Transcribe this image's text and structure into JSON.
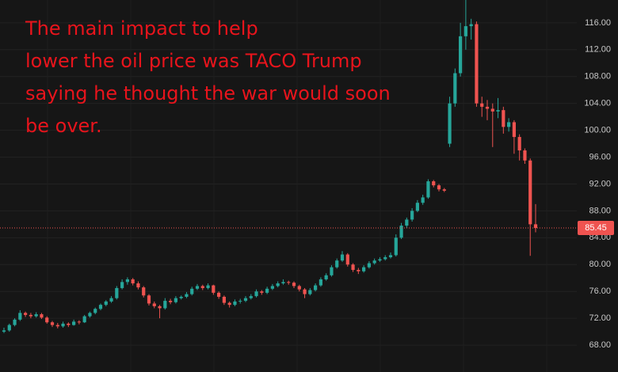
{
  "chart_data": {
    "type": "candlestick",
    "annotation_lines": [
      "The main impact to help",
      "lower the oil price was TACO Trump",
      "saying he thought the war would soon",
      "be over."
    ],
    "up_color": "#26a69a",
    "down_color": "#ef5350",
    "ylim": [
      64,
      119.4
    ],
    "yticks": [
      {
        "value": 68,
        "label": "68.00"
      },
      {
        "value": 72,
        "label": "72.00"
      },
      {
        "value": 76,
        "label": "76.00"
      },
      {
        "value": 80,
        "label": "80.00"
      },
      {
        "value": 84,
        "label": "84.00"
      },
      {
        "value": 88,
        "label": "88.00"
      },
      {
        "value": 92,
        "label": "92.00"
      },
      {
        "value": 96,
        "label": "96.00"
      },
      {
        "value": 100,
        "label": "100.00"
      },
      {
        "value": 104,
        "label": "104.00"
      },
      {
        "value": 108,
        "label": "108.00"
      },
      {
        "value": 112,
        "label": "112.00"
      },
      {
        "value": 116,
        "label": "116.00"
      }
    ],
    "last_price": 85.45,
    "grid": true,
    "candles": [
      [
        70.0,
        70.6,
        69.8,
        70.2
      ],
      [
        70.2,
        71.2,
        70.0,
        71.0
      ],
      [
        71.0,
        72.0,
        70.8,
        71.8
      ],
      [
        71.8,
        73.2,
        71.6,
        72.8
      ],
      [
        72.8,
        73.0,
        72.2,
        72.5
      ],
      [
        72.5,
        72.8,
        72.0,
        72.3
      ],
      [
        72.3,
        72.9,
        72.1,
        72.6
      ],
      [
        72.6,
        72.8,
        71.9,
        72.1
      ],
      [
        72.1,
        72.3,
        71.2,
        71.4
      ],
      [
        71.4,
        71.6,
        70.7,
        71.0
      ],
      [
        71.0,
        71.3,
        70.5,
        70.8
      ],
      [
        70.8,
        71.5,
        70.6,
        71.2
      ],
      [
        71.2,
        71.4,
        70.7,
        71.0
      ],
      [
        71.0,
        71.8,
        70.9,
        71.5
      ],
      [
        71.5,
        71.7,
        71.1,
        71.4
      ],
      [
        71.4,
        72.5,
        71.3,
        72.3
      ],
      [
        72.3,
        73.0,
        72.1,
        72.8
      ],
      [
        72.8,
        73.6,
        72.6,
        73.4
      ],
      [
        73.4,
        74.2,
        73.2,
        74.0
      ],
      [
        74.0,
        74.7,
        73.8,
        74.5
      ],
      [
        74.5,
        75.3,
        74.3,
        75.0
      ],
      [
        75.0,
        76.8,
        74.8,
        76.5
      ],
      [
        76.5,
        77.8,
        76.3,
        77.4
      ],
      [
        77.4,
        78.1,
        77.0,
        77.8
      ],
      [
        77.8,
        78.0,
        76.9,
        77.2
      ],
      [
        77.2,
        77.5,
        76.3,
        76.6
      ],
      [
        76.6,
        76.8,
        75.1,
        75.4
      ],
      [
        75.4,
        75.6,
        73.9,
        74.2
      ],
      [
        74.2,
        74.5,
        73.5,
        73.8
      ],
      [
        73.8,
        74.0,
        72.0,
        73.5
      ],
      [
        73.5,
        75.0,
        73.3,
        74.6
      ],
      [
        74.6,
        74.9,
        74.1,
        74.4
      ],
      [
        74.4,
        75.3,
        74.2,
        75.0
      ],
      [
        75.0,
        75.4,
        74.8,
        75.2
      ],
      [
        75.2,
        75.9,
        75.0,
        75.6
      ],
      [
        75.6,
        76.7,
        75.4,
        76.4
      ],
      [
        76.4,
        77.1,
        76.2,
        76.8
      ],
      [
        76.8,
        77.0,
        76.2,
        76.5
      ],
      [
        76.5,
        77.2,
        76.3,
        76.9
      ],
      [
        76.9,
        77.0,
        75.5,
        75.8
      ],
      [
        75.8,
        76.0,
        74.9,
        75.2
      ],
      [
        75.2,
        75.4,
        74.0,
        74.3
      ],
      [
        74.3,
        74.5,
        73.6,
        74.0
      ],
      [
        74.0,
        74.8,
        73.8,
        74.5
      ],
      [
        74.5,
        74.9,
        74.2,
        74.6
      ],
      [
        74.6,
        75.3,
        74.4,
        75.0
      ],
      [
        75.0,
        75.6,
        74.8,
        75.3
      ],
      [
        75.3,
        76.3,
        75.1,
        76.0
      ],
      [
        76.0,
        76.2,
        75.5,
        75.8
      ],
      [
        75.8,
        76.7,
        75.6,
        76.4
      ],
      [
        76.4,
        77.1,
        76.2,
        76.8
      ],
      [
        76.8,
        77.5,
        76.6,
        77.2
      ],
      [
        77.2,
        77.8,
        77.0,
        77.4
      ],
      [
        77.4,
        77.6,
        77.0,
        77.3
      ],
      [
        77.3,
        77.5,
        76.5,
        76.8
      ],
      [
        76.8,
        77.0,
        76.0,
        76.3
      ],
      [
        76.3,
        76.5,
        75.0,
        75.6
      ],
      [
        75.6,
        76.5,
        75.4,
        76.2
      ],
      [
        76.2,
        77.2,
        76.0,
        76.9
      ],
      [
        76.9,
        78.1,
        76.7,
        77.8
      ],
      [
        77.8,
        78.7,
        77.6,
        78.4
      ],
      [
        78.4,
        79.9,
        78.2,
        79.6
      ],
      [
        79.6,
        80.9,
        79.4,
        80.6
      ],
      [
        80.6,
        82.0,
        80.4,
        81.5
      ],
      [
        81.5,
        81.7,
        79.7,
        80.0
      ],
      [
        80.0,
        80.2,
        78.9,
        79.2
      ],
      [
        79.2,
        79.5,
        78.6,
        79.0
      ],
      [
        79.0,
        79.9,
        78.8,
        79.6
      ],
      [
        79.6,
        80.5,
        79.4,
        80.2
      ],
      [
        80.2,
        80.9,
        80.0,
        80.6
      ],
      [
        80.6,
        81.1,
        80.4,
        80.8
      ],
      [
        80.8,
        81.4,
        80.6,
        81.1
      ],
      [
        81.1,
        81.8,
        80.9,
        81.4
      ],
      [
        81.4,
        84.5,
        81.2,
        84.0
      ],
      [
        84.0,
        86.2,
        83.8,
        85.8
      ],
      [
        85.8,
        87.0,
        85.5,
        86.7
      ],
      [
        86.7,
        88.4,
        86.4,
        88.0
      ],
      [
        88.0,
        89.6,
        87.8,
        89.2
      ],
      [
        89.2,
        90.4,
        88.9,
        90.0
      ],
      [
        90.0,
        92.7,
        89.8,
        92.4
      ],
      [
        92.4,
        92.6,
        91.5,
        91.8
      ],
      [
        91.8,
        92.0,
        90.9,
        91.2
      ],
      [
        91.2,
        91.4,
        90.8,
        91.0
      ],
      [
        98.0,
        105.0,
        97.5,
        104.0
      ],
      [
        104.0,
        109.2,
        103.5,
        108.5
      ],
      [
        108.5,
        116.0,
        108.0,
        114.0
      ],
      [
        114.0,
        119.4,
        112.0,
        115.5
      ],
      [
        115.5,
        116.6,
        113.5,
        115.8
      ],
      [
        115.8,
        116.2,
        103.5,
        104.0
      ],
      [
        104.0,
        105.0,
        102.0,
        103.5
      ],
      [
        103.5,
        104.5,
        101.5,
        103.2
      ],
      [
        103.2,
        104.0,
        97.5,
        102.8
      ],
      [
        102.8,
        104.8,
        101.8,
        103.0
      ],
      [
        103.0,
        103.5,
        99.5,
        100.5
      ],
      [
        100.5,
        101.8,
        99.8,
        101.2
      ],
      [
        101.2,
        101.5,
        96.5,
        99.0
      ],
      [
        99.0,
        99.4,
        95.5,
        97.0
      ],
      [
        97.0,
        97.3,
        95.0,
        95.5
      ],
      [
        95.5,
        95.8,
        81.3,
        86.0
      ],
      [
        86.0,
        89.0,
        84.8,
        85.45
      ]
    ]
  }
}
